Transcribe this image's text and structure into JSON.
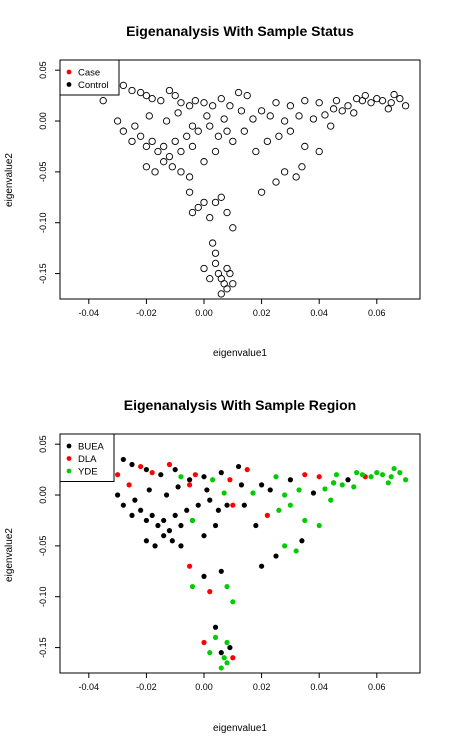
{
  "chart_data": [
    {
      "type": "scatter",
      "title": "Eigenanalysis With Sample Status",
      "xlabel": "eigenvalue1",
      "ylabel": "eigenvalue2",
      "xlim": [
        -0.05,
        0.075
      ],
      "ylim": [
        -0.175,
        0.06
      ],
      "xticks": [
        -0.04,
        -0.02,
        0.0,
        0.02,
        0.04,
        0.06
      ],
      "xtick_labels": [
        "-0.04",
        "-0.02",
        "0.00",
        "0.02",
        "0.04",
        "0.06"
      ],
      "yticks": [
        0.05,
        0.0,
        -0.05,
        -0.1,
        -0.15
      ],
      "ytick_labels": [
        "0.05",
        "0.00",
        "-0.05",
        "-0.10",
        "-0.15"
      ],
      "grid": false,
      "marker": "open-circle",
      "legend": {
        "placement": "top-left",
        "entries": [
          {
            "label": "Case",
            "color": "#ff0000"
          },
          {
            "label": "Control",
            "color": "#000000"
          }
        ]
      },
      "points": [
        [
          -0.028,
          0.035
        ],
        [
          -0.025,
          0.03
        ],
        [
          -0.022,
          0.028
        ],
        [
          -0.02,
          0.025
        ],
        [
          -0.018,
          0.022
        ],
        [
          -0.015,
          0.02
        ],
        [
          -0.012,
          0.03
        ],
        [
          -0.01,
          0.025
        ],
        [
          -0.008,
          0.018
        ],
        [
          -0.005,
          0.015
        ],
        [
          -0.003,
          0.02
        ],
        [
          0.0,
          0.018
        ],
        [
          0.003,
          0.015
        ],
        [
          0.006,
          0.022
        ],
        [
          0.009,
          0.015
        ],
        [
          0.012,
          0.028
        ],
        [
          0.015,
          0.025
        ],
        [
          0.02,
          0.01
        ],
        [
          0.025,
          0.018
        ],
        [
          0.03,
          0.015
        ],
        [
          0.035,
          0.02
        ],
        [
          0.04,
          0.018
        ],
        [
          0.045,
          0.012
        ],
        [
          0.05,
          0.015
        ],
        [
          0.055,
          0.02
        ],
        [
          0.058,
          0.018
        ],
        [
          0.06,
          0.022
        ],
        [
          0.062,
          0.02
        ],
        [
          0.065,
          0.018
        ],
        [
          0.068,
          0.022
        ],
        [
          0.07,
          0.015
        ],
        [
          0.052,
          0.008
        ],
        [
          0.048,
          0.01
        ],
        [
          0.056,
          0.025
        ],
        [
          0.064,
          0.012
        ],
        [
          -0.032,
          0.04
        ],
        [
          -0.035,
          0.02
        ],
        [
          -0.03,
          0.0
        ],
        [
          -0.028,
          -0.01
        ],
        [
          -0.025,
          -0.02
        ],
        [
          -0.022,
          -0.015
        ],
        [
          -0.02,
          -0.025
        ],
        [
          -0.018,
          -0.02
        ],
        [
          -0.016,
          -0.03
        ],
        [
          -0.014,
          -0.025
        ],
        [
          -0.012,
          -0.035
        ],
        [
          -0.01,
          -0.02
        ],
        [
          -0.008,
          -0.03
        ],
        [
          -0.006,
          -0.015
        ],
        [
          -0.004,
          -0.025
        ],
        [
          -0.002,
          -0.01
        ],
        [
          0.002,
          -0.005
        ],
        [
          0.005,
          -0.015
        ],
        [
          0.008,
          -0.01
        ],
        [
          0.01,
          -0.02
        ],
        [
          0.014,
          -0.01
        ],
        [
          0.018,
          -0.03
        ],
        [
          0.022,
          -0.02
        ],
        [
          0.026,
          -0.015
        ],
        [
          0.03,
          -0.01
        ],
        [
          0.035,
          -0.025
        ],
        [
          0.04,
          -0.03
        ],
        [
          0.044,
          -0.005
        ],
        [
          -0.02,
          -0.045
        ],
        [
          -0.017,
          -0.05
        ],
        [
          -0.014,
          -0.04
        ],
        [
          -0.011,
          -0.045
        ],
        [
          -0.008,
          -0.05
        ],
        [
          -0.005,
          -0.055
        ],
        [
          0.0,
          -0.04
        ],
        [
          0.004,
          -0.03
        ],
        [
          -0.005,
          -0.07
        ],
        [
          -0.004,
          -0.09
        ],
        [
          -0.002,
          -0.085
        ],
        [
          0.0,
          -0.08
        ],
        [
          0.002,
          -0.095
        ],
        [
          0.004,
          -0.08
        ],
        [
          0.006,
          -0.075
        ],
        [
          0.008,
          -0.09
        ],
        [
          0.01,
          -0.105
        ],
        [
          0.02,
          -0.07
        ],
        [
          0.025,
          -0.06
        ],
        [
          0.028,
          -0.05
        ],
        [
          0.032,
          -0.055
        ],
        [
          0.034,
          -0.045
        ],
        [
          0.004,
          -0.13
        ],
        [
          0.004,
          -0.14
        ],
        [
          0.005,
          -0.15
        ],
        [
          0.006,
          -0.155
        ],
        [
          0.007,
          -0.16
        ],
        [
          0.008,
          -0.145
        ],
        [
          0.009,
          -0.15
        ],
        [
          0.008,
          -0.165
        ],
        [
          0.006,
          -0.17
        ],
        [
          0.0,
          -0.145
        ],
        [
          0.002,
          -0.155
        ],
        [
          0.01,
          -0.16
        ],
        [
          0.003,
          -0.12
        ],
        [
          -0.024,
          -0.005
        ],
        [
          -0.019,
          0.005
        ],
        [
          -0.013,
          0.0
        ],
        [
          -0.009,
          0.008
        ],
        [
          -0.004,
          -0.005
        ],
        [
          0.001,
          0.005
        ],
        [
          0.007,
          0.002
        ],
        [
          0.013,
          0.01
        ],
        [
          0.017,
          0.002
        ],
        [
          0.023,
          0.005
        ],
        [
          0.028,
          0.0
        ],
        [
          0.033,
          0.005
        ],
        [
          0.038,
          0.002
        ],
        [
          0.042,
          0.006
        ],
        [
          0.046,
          0.02
        ],
        [
          0.053,
          0.022
        ],
        [
          0.066,
          0.026
        ]
      ]
    },
    {
      "type": "scatter",
      "title": "Eigenanalysis With Sample Region",
      "xlabel": "eigenvalue1",
      "ylabel": "eigenvalue2",
      "xlim": [
        -0.05,
        0.075
      ],
      "ylim": [
        -0.175,
        0.06
      ],
      "xticks": [
        -0.04,
        -0.02,
        0.0,
        0.02,
        0.04,
        0.06
      ],
      "xtick_labels": [
        "-0.04",
        "-0.02",
        "0.00",
        "0.02",
        "0.04",
        "0.06"
      ],
      "yticks": [
        0.05,
        0.0,
        -0.05,
        -0.1,
        -0.15
      ],
      "ytick_labels": [
        "0.05",
        "0.00",
        "-0.05",
        "-0.10",
        "-0.15"
      ],
      "grid": false,
      "marker": "filled-circle",
      "legend": {
        "placement": "top-left",
        "entries": [
          {
            "label": "BUEA",
            "color": "#000000"
          },
          {
            "label": "DLA",
            "color": "#ff0000"
          },
          {
            "label": "YDE",
            "color": "#00cc00"
          }
        ]
      },
      "series": [
        {
          "name": "BUEA",
          "color": "#000000",
          "points": [
            [
              -0.028,
              0.035
            ],
            [
              -0.025,
              0.03
            ],
            [
              -0.02,
              0.025
            ],
            [
              -0.015,
              0.02
            ],
            [
              -0.01,
              0.025
            ],
            [
              -0.005,
              0.015
            ],
            [
              0.0,
              0.018
            ],
            [
              0.006,
              0.022
            ],
            [
              0.012,
              0.028
            ],
            [
              0.02,
              0.01
            ],
            [
              0.03,
              0.015
            ],
            [
              -0.03,
              0.0
            ],
            [
              -0.028,
              -0.01
            ],
            [
              -0.025,
              -0.02
            ],
            [
              -0.022,
              -0.015
            ],
            [
              -0.02,
              -0.025
            ],
            [
              -0.018,
              -0.02
            ],
            [
              -0.016,
              -0.03
            ],
            [
              -0.014,
              -0.025
            ],
            [
              -0.012,
              -0.035
            ],
            [
              -0.01,
              -0.02
            ],
            [
              -0.008,
              -0.03
            ],
            [
              -0.006,
              -0.015
            ],
            [
              -0.004,
              -0.025
            ],
            [
              -0.002,
              -0.01
            ],
            [
              0.002,
              -0.005
            ],
            [
              0.005,
              -0.015
            ],
            [
              0.008,
              -0.01
            ],
            [
              0.014,
              -0.01
            ],
            [
              0.018,
              -0.03
            ],
            [
              -0.02,
              -0.045
            ],
            [
              -0.017,
              -0.05
            ],
            [
              -0.014,
              -0.04
            ],
            [
              -0.011,
              -0.045
            ],
            [
              -0.008,
              -0.05
            ],
            [
              0.0,
              -0.04
            ],
            [
              0.004,
              -0.03
            ],
            [
              0.0,
              -0.08
            ],
            [
              0.006,
              -0.075
            ],
            [
              0.02,
              -0.07
            ],
            [
              0.025,
              -0.06
            ],
            [
              0.034,
              -0.045
            ],
            [
              0.006,
              -0.155
            ],
            [
              0.009,
              -0.15
            ],
            [
              0.004,
              -0.13
            ],
            [
              -0.024,
              -0.005
            ],
            [
              -0.019,
              0.005
            ],
            [
              -0.013,
              0.0
            ],
            [
              -0.009,
              0.008
            ],
            [
              0.001,
              0.005
            ],
            [
              0.013,
              0.01
            ],
            [
              0.023,
              0.005
            ],
            [
              0.038,
              0.002
            ],
            [
              0.05,
              0.015
            ],
            [
              0.045,
              0.012
            ]
          ]
        },
        {
          "name": "DLA",
          "color": "#ff0000",
          "points": [
            [
              -0.03,
              0.02
            ],
            [
              -0.022,
              0.028
            ],
            [
              -0.018,
              0.022
            ],
            [
              -0.012,
              0.03
            ],
            [
              -0.003,
              0.02
            ],
            [
              0.009,
              0.015
            ],
            [
              0.015,
              0.025
            ],
            [
              0.035,
              0.02
            ],
            [
              -0.026,
              0.01
            ],
            [
              -0.005,
              0.01
            ],
            [
              -0.005,
              -0.07
            ],
            [
              0.002,
              -0.095
            ],
            [
              0.0,
              -0.145
            ],
            [
              0.01,
              -0.01
            ],
            [
              0.022,
              -0.02
            ],
            [
              0.01,
              -0.16
            ],
            [
              0.04,
              0.018
            ],
            [
              0.056,
              0.018
            ]
          ]
        },
        {
          "name": "YDE",
          "color": "#00cc00",
          "points": [
            [
              -0.032,
              0.03
            ],
            [
              -0.008,
              0.018
            ],
            [
              0.003,
              0.015
            ],
            [
              0.025,
              0.018
            ],
            [
              0.045,
              0.012
            ],
            [
              0.052,
              0.008
            ],
            [
              0.055,
              0.02
            ],
            [
              0.058,
              0.018
            ],
            [
              0.06,
              0.022
            ],
            [
              0.062,
              0.02
            ],
            [
              0.065,
              0.018
            ],
            [
              0.068,
              0.022
            ],
            [
              0.07,
              0.015
            ],
            [
              0.048,
              0.01
            ],
            [
              0.064,
              0.012
            ],
            [
              0.042,
              0.006
            ],
            [
              0.046,
              0.02
            ],
            [
              0.053,
              0.022
            ],
            [
              0.066,
              0.026
            ],
            [
              0.033,
              0.005
            ],
            [
              0.028,
              0.0
            ],
            [
              0.017,
              0.002
            ],
            [
              0.007,
              0.002
            ],
            [
              0.026,
              -0.015
            ],
            [
              0.03,
              -0.01
            ],
            [
              0.044,
              -0.005
            ],
            [
              0.04,
              -0.03
            ],
            [
              0.035,
              -0.025
            ],
            [
              0.01,
              -0.105
            ],
            [
              -0.004,
              -0.09
            ],
            [
              0.002,
              -0.155
            ],
            [
              0.007,
              -0.16
            ],
            [
              0.008,
              -0.145
            ],
            [
              0.008,
              -0.165
            ],
            [
              0.006,
              -0.17
            ],
            [
              0.028,
              -0.05
            ],
            [
              0.032,
              -0.055
            ],
            [
              -0.004,
              -0.025
            ],
            [
              0.008,
              -0.09
            ],
            [
              0.004,
              -0.14
            ]
          ]
        }
      ]
    }
  ]
}
